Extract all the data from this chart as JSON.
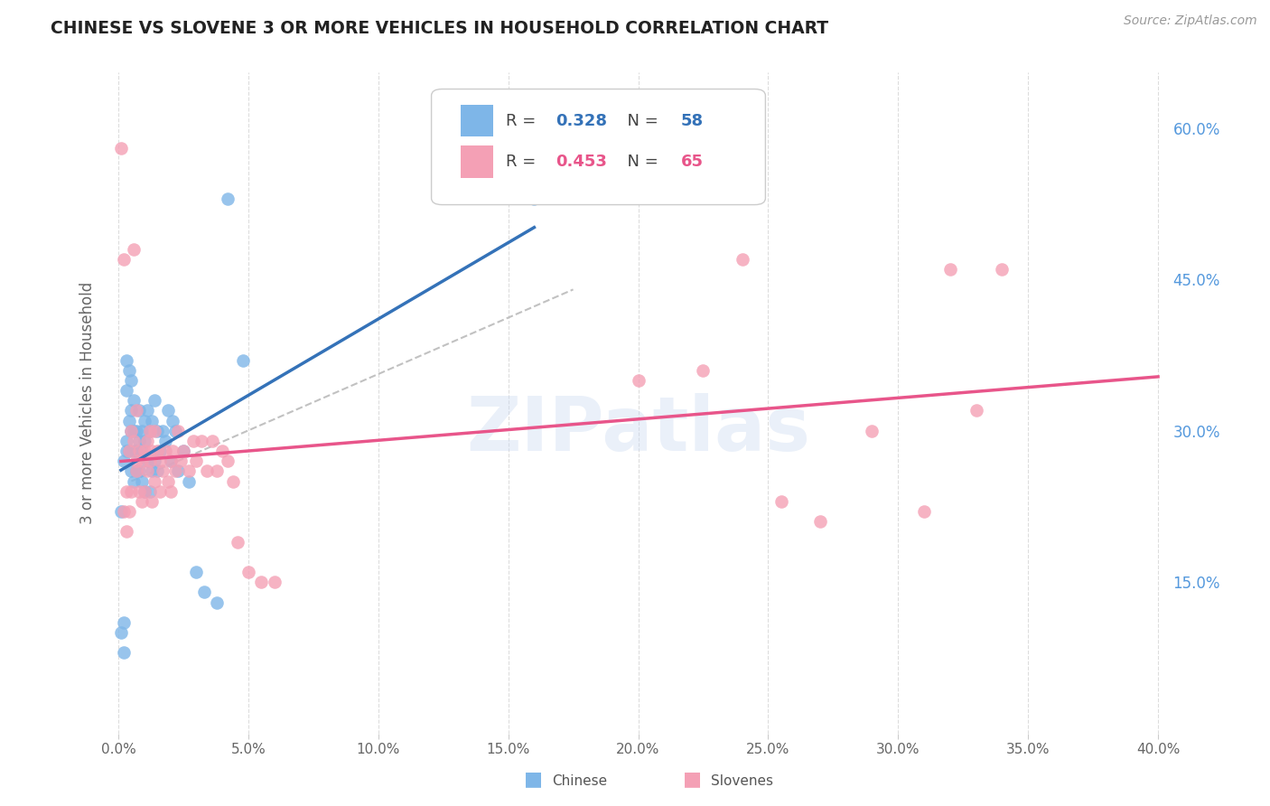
{
  "title": "CHINESE VS SLOVENE 3 OR MORE VEHICLES IN HOUSEHOLD CORRELATION CHART",
  "source": "Source: ZipAtlas.com",
  "ylabel": "3 or more Vehicles in Household",
  "watermark": "ZIPatlas",
  "chinese_R": 0.328,
  "chinese_N": 58,
  "slovene_R": 0.453,
  "slovene_N": 65,
  "xlim": [
    0.0,
    0.4
  ],
  "ylim": [
    0.0,
    0.65
  ],
  "ytick_right_positions": [
    0.15,
    0.3,
    0.45,
    0.6
  ],
  "ytick_right_labels": [
    "15.0%",
    "30.0%",
    "45.0%",
    "60.0%"
  ],
  "xtick_vals": [
    0.0,
    0.05,
    0.1,
    0.15,
    0.2,
    0.25,
    0.3,
    0.35,
    0.4
  ],
  "xtick_labels": [
    "0.0%",
    "5.0%",
    "10.0%",
    "15.0%",
    "20.0%",
    "25.0%",
    "30.0%",
    "35.0%",
    "40.0%"
  ],
  "chinese_color": "#7EB6E8",
  "slovene_color": "#F4A0B5",
  "chinese_line_color": "#3472B8",
  "slovene_line_color": "#E8558A",
  "dashed_line_color": "#BBBBBB",
  "background_color": "#FFFFFF",
  "grid_color": "#DDDDDD",
  "title_color": "#222222",
  "source_color": "#999999",
  "right_tick_color": "#5599DD",
  "chinese_x": [
    0.001,
    0.001,
    0.002,
    0.002,
    0.002,
    0.003,
    0.003,
    0.003,
    0.003,
    0.004,
    0.004,
    0.004,
    0.005,
    0.005,
    0.005,
    0.005,
    0.006,
    0.006,
    0.006,
    0.006,
    0.007,
    0.007,
    0.007,
    0.008,
    0.008,
    0.008,
    0.009,
    0.009,
    0.009,
    0.01,
    0.01,
    0.01,
    0.011,
    0.011,
    0.012,
    0.012,
    0.013,
    0.013,
    0.014,
    0.014,
    0.015,
    0.015,
    0.016,
    0.017,
    0.018,
    0.019,
    0.02,
    0.021,
    0.022,
    0.023,
    0.025,
    0.027,
    0.03,
    0.033,
    0.038,
    0.042,
    0.048,
    0.16
  ],
  "chinese_y": [
    0.22,
    0.1,
    0.27,
    0.11,
    0.08,
    0.37,
    0.34,
    0.29,
    0.28,
    0.36,
    0.31,
    0.28,
    0.35,
    0.32,
    0.3,
    0.26,
    0.33,
    0.3,
    0.28,
    0.25,
    0.3,
    0.28,
    0.26,
    0.32,
    0.29,
    0.26,
    0.3,
    0.28,
    0.25,
    0.31,
    0.29,
    0.24,
    0.32,
    0.27,
    0.3,
    0.24,
    0.31,
    0.26,
    0.33,
    0.27,
    0.3,
    0.26,
    0.28,
    0.3,
    0.29,
    0.32,
    0.27,
    0.31,
    0.3,
    0.26,
    0.28,
    0.25,
    0.16,
    0.14,
    0.13,
    0.53,
    0.37,
    0.53
  ],
  "slovene_x": [
    0.001,
    0.002,
    0.002,
    0.003,
    0.003,
    0.004,
    0.004,
    0.005,
    0.005,
    0.006,
    0.006,
    0.007,
    0.007,
    0.007,
    0.008,
    0.008,
    0.009,
    0.009,
    0.01,
    0.01,
    0.011,
    0.011,
    0.012,
    0.012,
    0.013,
    0.013,
    0.014,
    0.014,
    0.015,
    0.016,
    0.016,
    0.017,
    0.018,
    0.019,
    0.02,
    0.02,
    0.021,
    0.022,
    0.023,
    0.024,
    0.025,
    0.027,
    0.029,
    0.03,
    0.032,
    0.034,
    0.036,
    0.038,
    0.04,
    0.042,
    0.044,
    0.046,
    0.05,
    0.055,
    0.06,
    0.2,
    0.225,
    0.24,
    0.255,
    0.27,
    0.29,
    0.31,
    0.32,
    0.33,
    0.34
  ],
  "slovene_y": [
    0.58,
    0.47,
    0.22,
    0.24,
    0.2,
    0.28,
    0.22,
    0.3,
    0.24,
    0.48,
    0.29,
    0.26,
    0.32,
    0.27,
    0.28,
    0.24,
    0.27,
    0.23,
    0.28,
    0.24,
    0.29,
    0.26,
    0.3,
    0.27,
    0.28,
    0.23,
    0.3,
    0.25,
    0.28,
    0.27,
    0.24,
    0.26,
    0.28,
    0.25,
    0.27,
    0.24,
    0.28,
    0.26,
    0.3,
    0.27,
    0.28,
    0.26,
    0.29,
    0.27,
    0.29,
    0.26,
    0.29,
    0.26,
    0.28,
    0.27,
    0.25,
    0.19,
    0.16,
    0.15,
    0.15,
    0.35,
    0.36,
    0.47,
    0.23,
    0.21,
    0.3,
    0.22,
    0.46,
    0.32,
    0.46
  ]
}
